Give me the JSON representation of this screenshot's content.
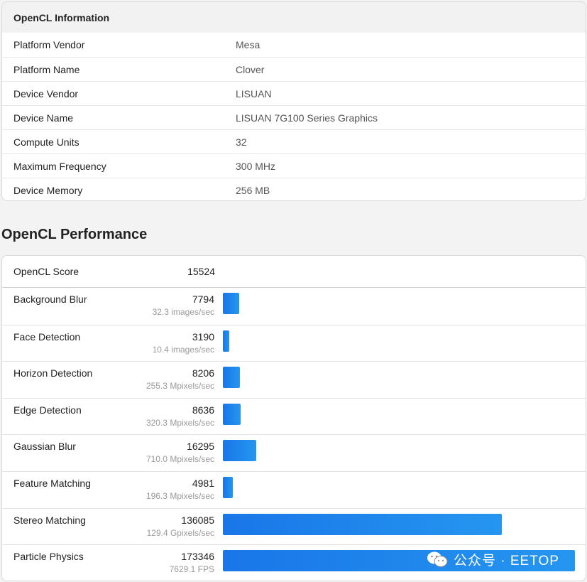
{
  "info": {
    "header": "OpenCL Information",
    "rows": [
      {
        "label": "Platform Vendor",
        "value": "Mesa"
      },
      {
        "label": "Platform Name",
        "value": "Clover"
      },
      {
        "label": "Device Vendor",
        "value": "LISUAN"
      },
      {
        "label": "Device Name",
        "value": "LISUAN 7G100 Series Graphics"
      },
      {
        "label": "Compute Units",
        "value": "32"
      },
      {
        "label": "Maximum Frequency",
        "value": "300 MHz"
      },
      {
        "label": "Device Memory",
        "value": "256 MB"
      }
    ]
  },
  "performance": {
    "title": "OpenCL Performance",
    "score_label": "OpenCL Score",
    "score_value": "15524",
    "max_score": 200000,
    "benchmarks": [
      {
        "name": "Background Blur",
        "score": 7794,
        "rate": "32.3 images/sec"
      },
      {
        "name": "Face Detection",
        "score": 3190,
        "rate": "10.4 images/sec"
      },
      {
        "name": "Horizon Detection",
        "score": 8206,
        "rate": "255.3 Mpixels/sec"
      },
      {
        "name": "Edge Detection",
        "score": 8636,
        "rate": "320.3 Mpixels/sec"
      },
      {
        "name": "Gaussian Blur",
        "score": 16295,
        "rate": "710.0 Mpixels/sec"
      },
      {
        "name": "Feature Matching",
        "score": 4981,
        "rate": "196.3 Mpixels/sec"
      },
      {
        "name": "Stereo Matching",
        "score": 136085,
        "rate": "129.4 Gpixels/sec"
      },
      {
        "name": "Particle Physics",
        "score": 173346,
        "rate": "7629.1 FPS"
      }
    ],
    "bar_color": "#1976e8"
  },
  "watermark": {
    "text": "公众号 · EETOP",
    "icon": "wechat-icon"
  }
}
